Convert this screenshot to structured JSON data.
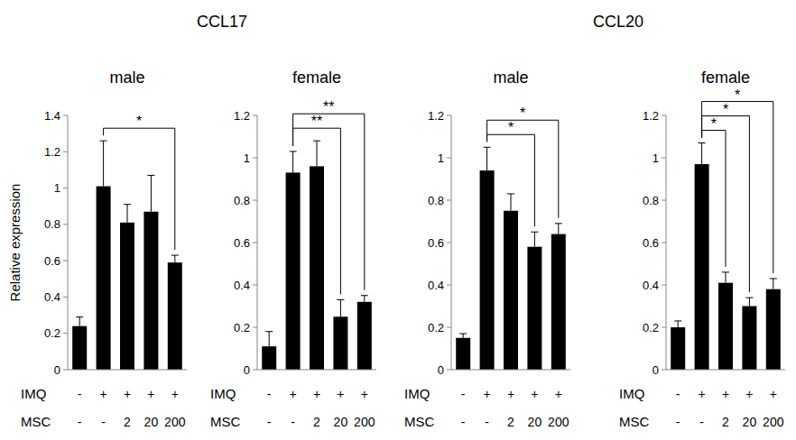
{
  "chart_data": [
    {
      "type": "bar",
      "group_title": "CCL17",
      "title": "male",
      "y_label": "Relative expression",
      "category_rows": [
        "IMQ",
        "MSC"
      ],
      "categories": [
        [
          "-",
          "-"
        ],
        [
          "+",
          "-"
        ],
        [
          "+",
          "2"
        ],
        [
          "+",
          "20"
        ],
        [
          "+",
          "200"
        ]
      ],
      "values": [
        0.24,
        1.01,
        0.81,
        0.87,
        0.59
      ],
      "errors": [
        0.05,
        0.25,
        0.1,
        0.2,
        0.04
      ],
      "color": "#000000",
      "ylim": [
        0,
        1.4
      ],
      "yticks": [
        0,
        0.2,
        0.4,
        0.6,
        0.8,
        1,
        1.2,
        1.4
      ],
      "annotations": [
        {
          "from": 1,
          "to": 4,
          "text": "*"
        }
      ]
    },
    {
      "type": "bar",
      "title": "female",
      "category_rows": [
        "IMQ",
        "MSC"
      ],
      "categories": [
        [
          "-",
          "-"
        ],
        [
          "+",
          "-"
        ],
        [
          "+",
          "2"
        ],
        [
          "+",
          "20"
        ],
        [
          "+",
          "200"
        ]
      ],
      "values": [
        0.11,
        0.93,
        0.96,
        0.25,
        0.32
      ],
      "errors": [
        0.07,
        0.1,
        0.12,
        0.08,
        0.03
      ],
      "color": "#000000",
      "ylim": [
        0,
        1.2
      ],
      "yticks": [
        0,
        0.2,
        0.4,
        0.6,
        0.8,
        1,
        1.2
      ],
      "annotations": [
        {
          "from": 1,
          "to": 3,
          "text": "**"
        },
        {
          "from": 1,
          "to": 4,
          "text": "**"
        }
      ]
    },
    {
      "type": "bar",
      "group_title": "CCL20",
      "title": "male",
      "category_rows": [
        "IMQ",
        "MSC"
      ],
      "categories": [
        [
          "-",
          "-"
        ],
        [
          "+",
          "-"
        ],
        [
          "+",
          "2"
        ],
        [
          "+",
          "20"
        ],
        [
          "+",
          "200"
        ]
      ],
      "values": [
        0.15,
        0.94,
        0.75,
        0.58,
        0.64
      ],
      "errors": [
        0.02,
        0.11,
        0.08,
        0.07,
        0.05
      ],
      "color": "#000000",
      "ylim": [
        0,
        1.2
      ],
      "yticks": [
        0,
        0.2,
        0.4,
        0.6,
        0.8,
        1,
        1.2
      ],
      "annotations": [
        {
          "from": 1,
          "to": 3,
          "text": "*"
        },
        {
          "from": 1,
          "to": 4,
          "text": "*"
        }
      ]
    },
    {
      "type": "bar",
      "title": "female",
      "category_rows": [
        "IMQ",
        "MSC"
      ],
      "categories": [
        [
          "-",
          "-"
        ],
        [
          "+",
          "-"
        ],
        [
          "+",
          "2"
        ],
        [
          "+",
          "20"
        ],
        [
          "+",
          "200"
        ]
      ],
      "values": [
        0.2,
        0.97,
        0.41,
        0.3,
        0.38
      ],
      "errors": [
        0.03,
        0.1,
        0.05,
        0.04,
        0.05
      ],
      "color": "#000000",
      "ylim": [
        0,
        1.2
      ],
      "yticks": [
        0,
        0.2,
        0.4,
        0.6,
        0.8,
        1,
        1.2
      ],
      "annotations": [
        {
          "from": 1,
          "to": 2,
          "text": "*"
        },
        {
          "from": 1,
          "to": 3,
          "text": "*"
        },
        {
          "from": 1,
          "to": 4,
          "text": "*"
        }
      ]
    }
  ]
}
